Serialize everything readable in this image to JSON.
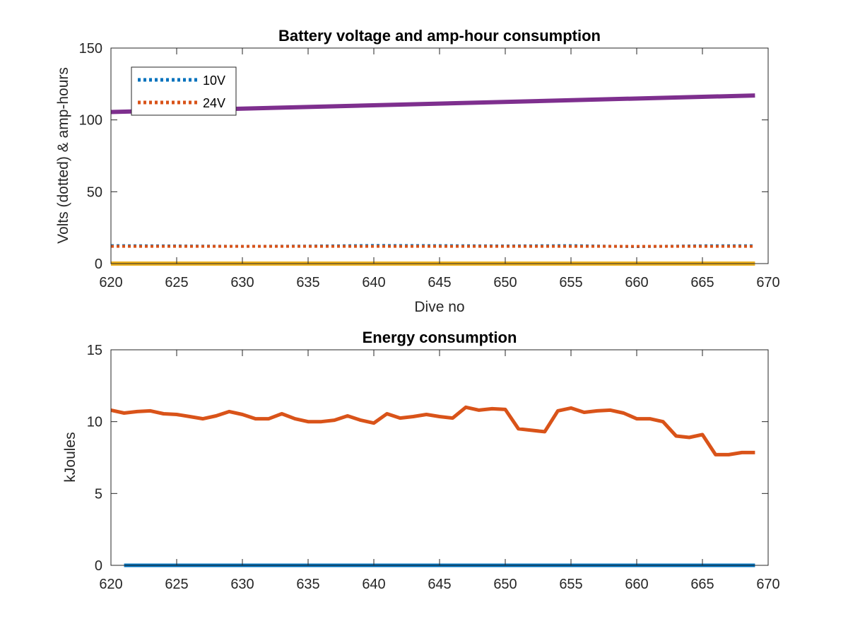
{
  "chart_data": [
    {
      "type": "line",
      "title": "Battery voltage and amp-hour consumption",
      "xlabel": "Dive no",
      "ylabel": "Volts (dotted) & amp-hours",
      "xlim": [
        620,
        670
      ],
      "ylim": [
        0,
        150
      ],
      "xticks": [
        620,
        625,
        630,
        635,
        640,
        645,
        650,
        655,
        660,
        665,
        670
      ],
      "yticks": [
        0,
        50,
        100,
        150
      ],
      "grid": false,
      "legend_placement": "top-left",
      "series": [
        {
          "name": "10V",
          "color": "#0072BD",
          "style": "dotted",
          "x": [
            620,
            625,
            630,
            635,
            640,
            645,
            650,
            655,
            660,
            665,
            669
          ],
          "values": [
            12.5,
            12.3,
            12.0,
            12.2,
            12.6,
            12.5,
            12.3,
            12.5,
            11.8,
            12.4,
            12.4
          ]
        },
        {
          "name": "24V",
          "color": "#D95319",
          "style": "dotted",
          "x": [
            620,
            625,
            630,
            635,
            640,
            645,
            650,
            655,
            660,
            665,
            669
          ],
          "values": [
            12.0,
            12.0,
            12.0,
            12.0,
            12.0,
            12.0,
            12.0,
            12.0,
            12.0,
            12.0,
            12.0
          ]
        },
        {
          "color": "#7E2F8E",
          "style": "solid",
          "x": [
            620,
            669
          ],
          "values": [
            105.5,
            117.0
          ]
        },
        {
          "color": "#EDB120",
          "style": "solid",
          "x": [
            620,
            669
          ],
          "values": [
            0,
            0
          ]
        }
      ],
      "legend": [
        "10V",
        "24V"
      ]
    },
    {
      "type": "line",
      "title": "Energy consumption",
      "xlabel": "",
      "ylabel": "kJoules",
      "xlim": [
        620,
        670
      ],
      "ylim": [
        0,
        15
      ],
      "xticks": [
        620,
        625,
        630,
        635,
        640,
        645,
        650,
        655,
        660,
        665,
        670
      ],
      "yticks": [
        0,
        5,
        10,
        15
      ],
      "grid": false,
      "series": [
        {
          "color": "#D95319",
          "style": "solid",
          "x": [
            620,
            621,
            622,
            623,
            624,
            625,
            626,
            627,
            628,
            629,
            630,
            631,
            632,
            633,
            634,
            635,
            636,
            637,
            638,
            639,
            640,
            641,
            642,
            643,
            644,
            645,
            646,
            647,
            648,
            649,
            650,
            651,
            652,
            653,
            654,
            655,
            656,
            657,
            658,
            659,
            660,
            661,
            662,
            663,
            664,
            665,
            666,
            667,
            668,
            669
          ],
          "values": [
            10.8,
            10.6,
            10.7,
            10.75,
            10.55,
            10.5,
            10.35,
            10.2,
            10.4,
            10.7,
            10.5,
            10.2,
            10.2,
            10.55,
            10.2,
            10.0,
            10.0,
            10.1,
            10.4,
            10.1,
            9.9,
            10.55,
            10.25,
            10.35,
            10.5,
            10.35,
            10.25,
            11.0,
            10.8,
            10.9,
            10.85,
            9.5,
            9.4,
            9.3,
            10.75,
            10.95,
            10.65,
            10.75,
            10.8,
            10.6,
            10.2,
            10.2,
            10.0,
            9.0,
            8.9,
            9.1,
            7.7,
            7.7,
            7.85,
            7.85
          ]
        },
        {
          "color": "#0072BD",
          "style": "solid",
          "x": [
            621,
            669
          ],
          "values": [
            0,
            0
          ]
        }
      ]
    }
  ]
}
